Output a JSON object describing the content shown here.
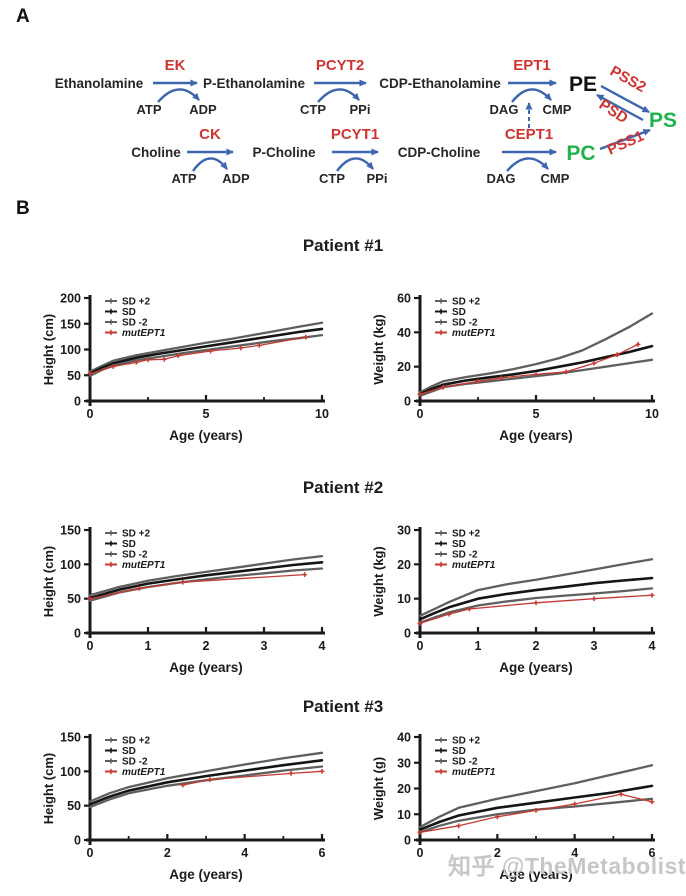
{
  "panel_a": {
    "label": "A",
    "ethanolamine_branch": {
      "substrate": "Ethanolamine",
      "enzyme_1": "EK",
      "intermediate_1": "P-Ethanolamine",
      "enzyme_2": "PCYT2",
      "intermediate_2": "CDP-Ethanolamine",
      "enzyme_3": "EPT1",
      "product": "PE",
      "cofactors_1": {
        "in": "ATP",
        "out": "ADP"
      },
      "cofactors_2": {
        "in": "CTP",
        "out": "PPi"
      },
      "cofactors_3": {
        "in": "DAG",
        "out": "CMP"
      }
    },
    "choline_branch": {
      "substrate": "Choline",
      "enzyme_1": "CK",
      "intermediate_1": "P-Choline",
      "enzyme_2": "PCYT1",
      "intermediate_2": "CDP-Choline",
      "enzyme_3": "CEPT1",
      "product": "PC",
      "cofactors_1": {
        "in": "ATP",
        "out": "ADP"
      },
      "cofactors_2": {
        "in": "CTP",
        "out": "PPi"
      },
      "cofactors_3": {
        "in": "DAG",
        "out": "CMP"
      }
    },
    "ps_node": "PS",
    "pe_to_ps_enzyme": "PSS2",
    "ps_to_pe_enzyme": "PSD",
    "pc_to_ps_enzyme": "PSS1",
    "colors": {
      "enzyme_red": "#cf3430",
      "arrow_blue": "#3c66ae",
      "product_green": "#22b24c",
      "metabolite_dark": "#262626"
    }
  },
  "panel_b": {
    "label": "B",
    "patients": [
      "Patient #1",
      "Patient #2",
      "Patient #3"
    ]
  },
  "watermark": "知乎 @TheMetabolist",
  "chart_colors": {
    "sd_band": "#5f5f5f",
    "sd_mean": "#151515",
    "mutant": "#c43a32"
  },
  "chart_data": [
    {
      "type": "line",
      "patient": "Patient #1",
      "measure": "height",
      "xlabel": "Age (years)",
      "ylabel": "Height (cm)",
      "xlim": [
        0,
        10
      ],
      "ylim": [
        0,
        200
      ],
      "xticks": [
        0,
        5,
        10
      ],
      "xminor": [
        2.5,
        7.5
      ],
      "yticks": [
        0,
        50,
        100,
        150,
        200
      ],
      "legend_position": "top-left",
      "grid": false,
      "series": [
        {
          "name": "SD +2",
          "color": "#5f5f5f",
          "width": 2.3,
          "markers": false,
          "italic": false,
          "x": [
            0,
            0.5,
            1,
            2,
            3,
            4,
            5,
            6,
            7,
            8,
            9,
            10
          ],
          "y": [
            57,
            68,
            78,
            89,
            97,
            105,
            113,
            120,
            128,
            136,
            144,
            152
          ]
        },
        {
          "name": "SD",
          "color": "#151515",
          "width": 2.6,
          "markers": false,
          "italic": false,
          "x": [
            0,
            0.5,
            1,
            2,
            3,
            4,
            5,
            6,
            7,
            8,
            9,
            10
          ],
          "y": [
            53,
            64,
            73,
            84,
            92,
            99,
            106,
            113,
            120,
            127,
            134,
            140
          ]
        },
        {
          "name": "SD -2",
          "color": "#5f5f5f",
          "width": 2.3,
          "markers": false,
          "italic": false,
          "x": [
            0,
            0.5,
            1,
            2,
            3,
            4,
            5,
            6,
            7,
            8,
            9,
            10
          ],
          "y": [
            49,
            60,
            69,
            79,
            86,
            93,
            99,
            105,
            111,
            117,
            122,
            128
          ]
        },
        {
          "name": "mutEPT1",
          "color": "#c43a32",
          "width": 1.3,
          "markers": true,
          "italic": true,
          "x": [
            0,
            1,
            2,
            2.5,
            3.2,
            3.8,
            5.2,
            6.5,
            7.3,
            9.3
          ],
          "y": [
            53,
            67,
            75,
            80,
            81,
            88,
            97,
            103,
            108,
            124
          ]
        }
      ]
    },
    {
      "type": "line",
      "patient": "Patient #1",
      "measure": "weight",
      "xlabel": "Age (years)",
      "ylabel": "Weight (kg)",
      "xlim": [
        0,
        10
      ],
      "ylim": [
        0,
        60
      ],
      "xticks": [
        0,
        5,
        10
      ],
      "xminor": [
        2.5,
        7.5
      ],
      "yticks": [
        0,
        20,
        40,
        60
      ],
      "legend_position": "top-left",
      "grid": false,
      "series": [
        {
          "name": "SD +2",
          "color": "#5f5f5f",
          "width": 2.3,
          "markers": false,
          "italic": false,
          "x": [
            0,
            0.5,
            1,
            2,
            3,
            4,
            5,
            6,
            7,
            8,
            9,
            10
          ],
          "y": [
            5,
            8.5,
            11.5,
            14,
            16,
            18.5,
            21.5,
            25,
            29.5,
            36,
            43,
            51
          ]
        },
        {
          "name": "SD",
          "color": "#151515",
          "width": 2.6,
          "markers": false,
          "italic": false,
          "x": [
            0,
            0.5,
            1,
            2,
            3,
            4,
            5,
            6,
            7,
            8,
            9,
            10
          ],
          "y": [
            4,
            7,
            9.5,
            12,
            13.8,
            15.5,
            17.5,
            20,
            22.5,
            25.5,
            28.5,
            32
          ]
        },
        {
          "name": "SD -2",
          "color": "#5f5f5f",
          "width": 2.3,
          "markers": false,
          "italic": false,
          "x": [
            0,
            0.5,
            1,
            2,
            3,
            4,
            5,
            6,
            7,
            8,
            9,
            10
          ],
          "y": [
            3,
            5.5,
            8,
            10,
            11.5,
            13,
            14.5,
            16,
            18,
            20,
            22,
            24
          ]
        },
        {
          "name": "mutEPT1",
          "color": "#c43a32",
          "width": 1.3,
          "markers": true,
          "italic": true,
          "x": [
            0,
            1,
            2.5,
            3.5,
            5,
            6.3,
            7.5,
            8.5,
            9.4
          ],
          "y": [
            4,
            8,
            11.5,
            13.5,
            15.5,
            17,
            22,
            27,
            33
          ]
        }
      ]
    },
    {
      "type": "line",
      "patient": "Patient #2",
      "measure": "height",
      "xlabel": "Age (years)",
      "ylabel": "Height (cm)",
      "xlim": [
        0,
        4
      ],
      "ylim": [
        0,
        150
      ],
      "xticks": [
        0,
        1,
        2,
        3,
        4
      ],
      "xminor": [],
      "yticks": [
        0,
        50,
        100,
        150
      ],
      "legend_position": "top-left",
      "grid": false,
      "series": [
        {
          "name": "SD +2",
          "color": "#5f5f5f",
          "width": 2.3,
          "markers": false,
          "italic": false,
          "x": [
            0,
            0.25,
            0.5,
            1,
            1.5,
            2,
            2.5,
            3,
            3.5,
            4
          ],
          "y": [
            55,
            61,
            67,
            76,
            83,
            89,
            95,
            101,
            107,
            112
          ]
        },
        {
          "name": "SD",
          "color": "#151515",
          "width": 2.6,
          "markers": false,
          "italic": false,
          "x": [
            0,
            0.25,
            0.5,
            1,
            1.5,
            2,
            2.5,
            3,
            3.5,
            4
          ],
          "y": [
            51,
            57,
            63,
            72,
            78,
            84,
            89,
            94,
            99,
            103
          ]
        },
        {
          "name": "SD -2",
          "color": "#5f5f5f",
          "width": 2.3,
          "markers": false,
          "italic": false,
          "x": [
            0,
            0.25,
            0.5,
            1,
            1.5,
            2,
            2.5,
            3,
            3.5,
            4
          ],
          "y": [
            47,
            53,
            59,
            67,
            73,
            78,
            83,
            87,
            91,
            94
          ]
        },
        {
          "name": "mutEPT1",
          "color": "#c43a32",
          "width": 1.3,
          "markers": true,
          "italic": true,
          "x": [
            0,
            0.85,
            1.6,
            3.7
          ],
          "y": [
            50,
            65,
            74,
            85
          ]
        }
      ]
    },
    {
      "type": "line",
      "patient": "Patient #2",
      "measure": "weight",
      "xlabel": "Age (years)",
      "ylabel": "Weight (kg)",
      "xlim": [
        0,
        4
      ],
      "ylim": [
        0,
        30
      ],
      "xticks": [
        0,
        1,
        2,
        3,
        4
      ],
      "xminor": [],
      "yticks": [
        0,
        10,
        20,
        30
      ],
      "legend_position": "top-left",
      "grid": false,
      "series": [
        {
          "name": "SD +2",
          "color": "#5f5f5f",
          "width": 2.3,
          "markers": false,
          "italic": false,
          "x": [
            0,
            0.25,
            0.5,
            1,
            1.5,
            2,
            2.5,
            3,
            3.5,
            4
          ],
          "y": [
            5,
            7,
            9,
            12.5,
            14.2,
            15.5,
            17,
            18.5,
            20,
            21.5
          ]
        },
        {
          "name": "SD",
          "color": "#151515",
          "width": 2.6,
          "markers": false,
          "italic": false,
          "x": [
            0,
            0.25,
            0.5,
            1,
            1.5,
            2,
            2.5,
            3,
            3.5,
            4
          ],
          "y": [
            4,
            5.8,
            7.5,
            10,
            11.4,
            12.5,
            13.5,
            14.5,
            15.3,
            16
          ]
        },
        {
          "name": "SD -2",
          "color": "#5f5f5f",
          "width": 2.3,
          "markers": false,
          "italic": false,
          "x": [
            0,
            0.25,
            0.5,
            1,
            1.5,
            2,
            2.5,
            3,
            3.5,
            4
          ],
          "y": [
            3,
            4.5,
            6,
            8,
            9.2,
            10.2,
            10.9,
            11.5,
            12.2,
            13
          ]
        },
        {
          "name": "mutEPT1",
          "color": "#c43a32",
          "width": 1.3,
          "markers": true,
          "italic": true,
          "x": [
            0,
            0.5,
            0.85,
            2,
            3,
            4
          ],
          "y": [
            2.8,
            5.5,
            7,
            8.8,
            10,
            11
          ]
        }
      ]
    },
    {
      "type": "line",
      "patient": "Patient #3",
      "measure": "height",
      "xlabel": "Age (years)",
      "ylabel": "Height (cm)",
      "xlim": [
        0,
        6
      ],
      "ylim": [
        0,
        150
      ],
      "xticks": [
        0,
        2,
        4,
        6
      ],
      "xminor": [
        1,
        3,
        5
      ],
      "yticks": [
        0,
        50,
        100,
        150
      ],
      "legend_position": "top-left",
      "grid": false,
      "series": [
        {
          "name": "SD +2",
          "color": "#5f5f5f",
          "width": 2.3,
          "markers": false,
          "italic": false,
          "x": [
            0,
            0.5,
            1,
            2,
            3,
            4,
            5,
            6
          ],
          "y": [
            56,
            68,
            77,
            90,
            100,
            110,
            119,
            127
          ]
        },
        {
          "name": "SD",
          "color": "#151515",
          "width": 2.6,
          "markers": false,
          "italic": false,
          "x": [
            0,
            0.5,
            1,
            2,
            3,
            4,
            5,
            6
          ],
          "y": [
            52,
            63,
            72,
            84,
            93,
            101,
            109,
            116
          ]
        },
        {
          "name": "SD -2",
          "color": "#5f5f5f",
          "width": 2.3,
          "markers": false,
          "italic": false,
          "x": [
            0,
            0.5,
            1,
            2,
            3,
            4,
            5,
            6
          ],
          "y": [
            48,
            59,
            68,
            79,
            87,
            94,
            101,
            107
          ]
        },
        {
          "name": "mutEPT1",
          "color": "#c43a32",
          "width": 1.3,
          "markers": true,
          "italic": true,
          "x": [
            2.4,
            3.1,
            5.2,
            6
          ],
          "y": [
            80,
            88,
            97,
            100
          ]
        }
      ]
    },
    {
      "type": "line",
      "patient": "Patient #3",
      "measure": "weight",
      "xlabel": "Age (years)",
      "ylabel": "Weight (g)",
      "xlim": [
        0,
        6
      ],
      "ylim": [
        0,
        40
      ],
      "xticks": [
        0,
        2,
        4,
        6
      ],
      "xminor": [
        1,
        3,
        5
      ],
      "yticks": [
        0,
        10,
        20,
        30,
        40
      ],
      "legend_position": "top-left",
      "grid": false,
      "series": [
        {
          "name": "SD +2",
          "color": "#5f5f5f",
          "width": 2.3,
          "markers": false,
          "italic": false,
          "x": [
            0,
            0.5,
            1,
            2,
            3,
            4,
            5,
            6
          ],
          "y": [
            5,
            9,
            12.5,
            16,
            19,
            22,
            25.5,
            29
          ]
        },
        {
          "name": "SD",
          "color": "#151515",
          "width": 2.6,
          "markers": false,
          "italic": false,
          "x": [
            0,
            0.5,
            1,
            2,
            3,
            4,
            5,
            6
          ],
          "y": [
            4,
            7,
            9.5,
            12.5,
            14.5,
            16.5,
            18.5,
            21
          ]
        },
        {
          "name": "SD -2",
          "color": "#5f5f5f",
          "width": 2.3,
          "markers": false,
          "italic": false,
          "x": [
            0,
            0.5,
            1,
            2,
            3,
            4,
            5,
            6
          ],
          "y": [
            3,
            5.5,
            7.5,
            10,
            11.8,
            13,
            14.5,
            16
          ]
        },
        {
          "name": "mutEPT1",
          "color": "#c43a32",
          "width": 1.3,
          "markers": true,
          "italic": true,
          "x": [
            0,
            1,
            2,
            3,
            4,
            5.2,
            6
          ],
          "y": [
            3,
            5.5,
            9,
            11.5,
            14,
            17.8,
            14.8
          ]
        }
      ]
    }
  ]
}
